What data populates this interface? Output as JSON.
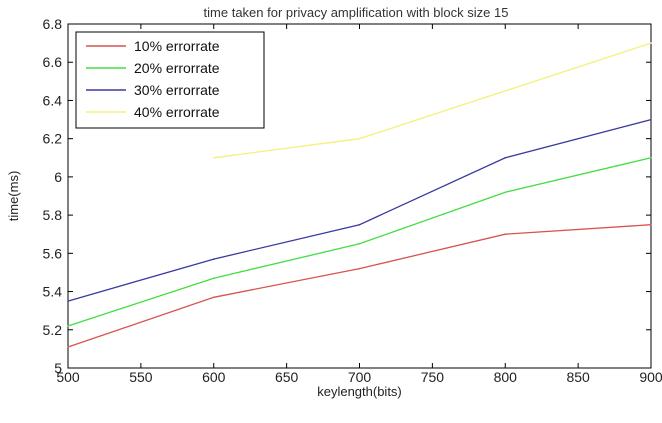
{
  "chart_data": {
    "type": "line",
    "title": "time taken for privacy amplification with block size 15",
    "xlabel": "keylength(bits)",
    "ylabel": "time(ms)",
    "xlim": [
      500,
      900
    ],
    "ylim": [
      5,
      6.8
    ],
    "xticks": [
      500,
      550,
      600,
      650,
      700,
      750,
      800,
      850,
      900
    ],
    "yticks": [
      5,
      5.2,
      5.4,
      5.6,
      5.8,
      6,
      6.2,
      6.4,
      6.6,
      6.8
    ],
    "xtick_labels": [
      "500",
      "550",
      "600",
      "650",
      "700",
      "750",
      "800",
      "850",
      "900"
    ],
    "ytick_labels": [
      "5",
      "5.2",
      "5.4",
      "5.6",
      "5.8",
      "6",
      "6.2",
      "6.4",
      "6.6",
      "6.8"
    ],
    "grid": false,
    "legend_position": "top-left",
    "series": [
      {
        "name": "10% errorrate",
        "color": "#d9534f",
        "x": [
          500,
          600,
          700,
          800,
          900
        ],
        "y": [
          5.11,
          5.37,
          5.52,
          5.7,
          5.75
        ]
      },
      {
        "name": "20% errorrate",
        "color": "#44dd44",
        "x": [
          500,
          600,
          700,
          800,
          900
        ],
        "y": [
          5.22,
          5.47,
          5.65,
          5.92,
          6.1
        ]
      },
      {
        "name": "30% errorrate",
        "color": "#3a3a9e",
        "x": [
          500,
          600,
          700,
          800,
          900
        ],
        "y": [
          5.35,
          5.57,
          5.75,
          6.1,
          6.3
        ]
      },
      {
        "name": "40% errorrate",
        "color": "#f5f07a",
        "x": [
          600,
          700,
          800,
          900
        ],
        "y": [
          6.1,
          6.2,
          6.45,
          6.7
        ]
      }
    ]
  }
}
